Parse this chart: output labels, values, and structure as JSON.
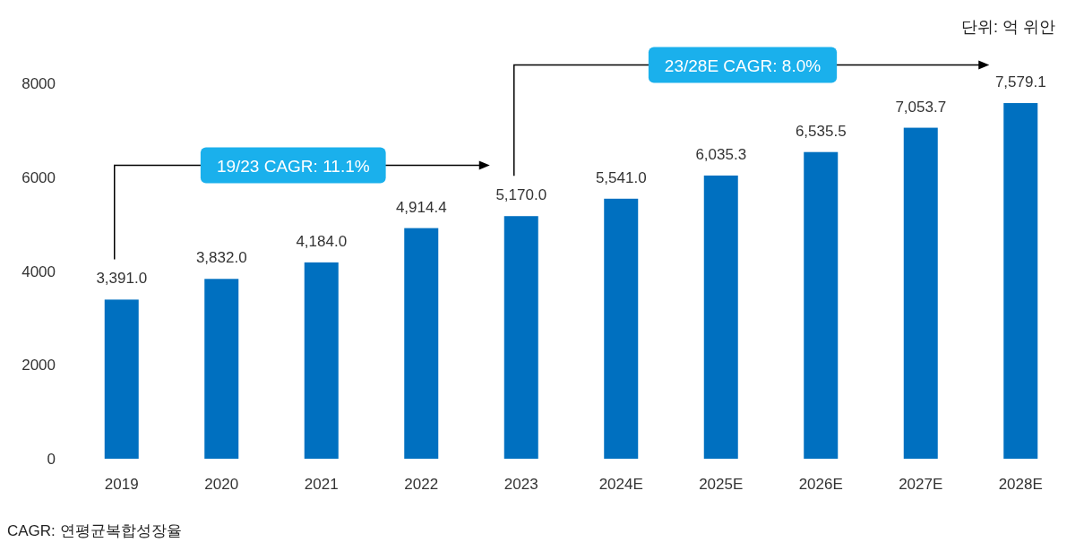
{
  "chart_data": {
    "type": "bar",
    "categories": [
      "2019",
      "2020",
      "2021",
      "2022",
      "2023",
      "2024E",
      "2025E",
      "2026E",
      "2027E",
      "2028E"
    ],
    "values": [
      3391.0,
      3832.0,
      4184.0,
      4914.4,
      5170.0,
      5541.0,
      6035.3,
      6535.5,
      7053.7,
      7579.1
    ],
    "value_labels": [
      "3,391.0",
      "3,832.0",
      "4,184.0",
      "4,914.4",
      "5,170.0",
      "5,541.0",
      "6,035.3",
      "6,535.5",
      "7,053.7",
      "7,579.1"
    ],
    "color": "#0070c0",
    "ylim": [
      0,
      8000
    ],
    "yticks": [
      0,
      2000,
      4000,
      6000,
      8000
    ],
    "grid": false,
    "annotations": [
      "단위: 억 위안",
      "19/23 CAGR: 11.1%",
      "23/28E CAGR: 8.0%",
      "CAGR: 연평균복합성장율"
    ]
  }
}
